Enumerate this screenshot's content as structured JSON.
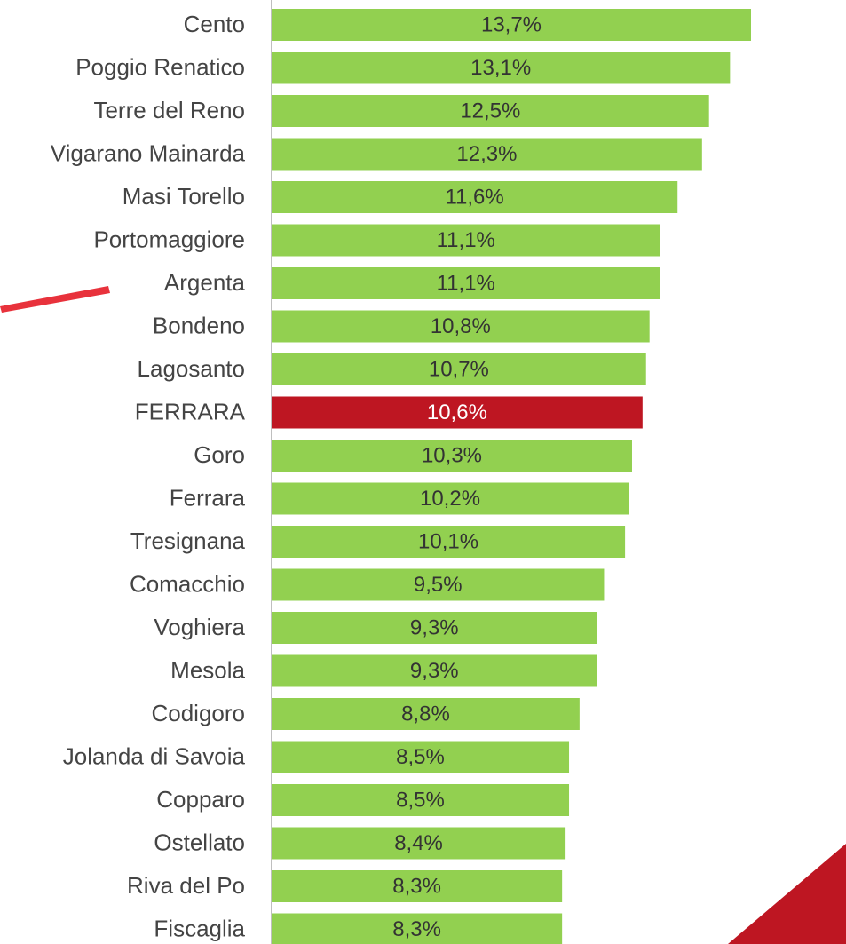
{
  "chart_data": {
    "type": "hbar",
    "categories": [
      "Cento",
      "Poggio Renatico",
      "Terre del Reno",
      "Vigarano Mainarda",
      "Masi Torello",
      "Portomaggiore",
      "Argenta",
      "Bondeno",
      "Lagosanto",
      "FERRARA",
      "Goro",
      "Ferrara",
      "Tresignana",
      "Comacchio",
      "Voghiera",
      "Mesola",
      "Codigoro",
      "Jolanda di Savoia",
      "Copparo",
      "Ostellato",
      "Riva del Po",
      "Fiscaglia"
    ],
    "values": [
      13.7,
      13.1,
      12.5,
      12.3,
      11.6,
      11.1,
      11.1,
      10.8,
      10.7,
      10.6,
      10.3,
      10.2,
      10.1,
      9.5,
      9.3,
      9.3,
      8.8,
      8.5,
      8.5,
      8.4,
      8.3,
      8.3
    ],
    "value_labels": [
      "13,7%",
      "13,1%",
      "12,5%",
      "12,3%",
      "11,6%",
      "11,1%",
      "11,1%",
      "10,8%",
      "10,7%",
      "10,6%",
      "10,3%",
      "10,2%",
      "10,1%",
      "9,5%",
      "9,3%",
      "9,3%",
      "8,8%",
      "8,5%",
      "8,5%",
      "8,4%",
      "8,3%",
      "8,3%"
    ],
    "colors": [
      "#92d050",
      "#92d050",
      "#92d050",
      "#92d050",
      "#92d050",
      "#92d050",
      "#92d050",
      "#92d050",
      "#92d050",
      "#be1622",
      "#92d050",
      "#92d050",
      "#92d050",
      "#92d050",
      "#92d050",
      "#92d050",
      "#92d050",
      "#92d050",
      "#92d050",
      "#92d050",
      "#92d050",
      "#92d050"
    ]
  }
}
